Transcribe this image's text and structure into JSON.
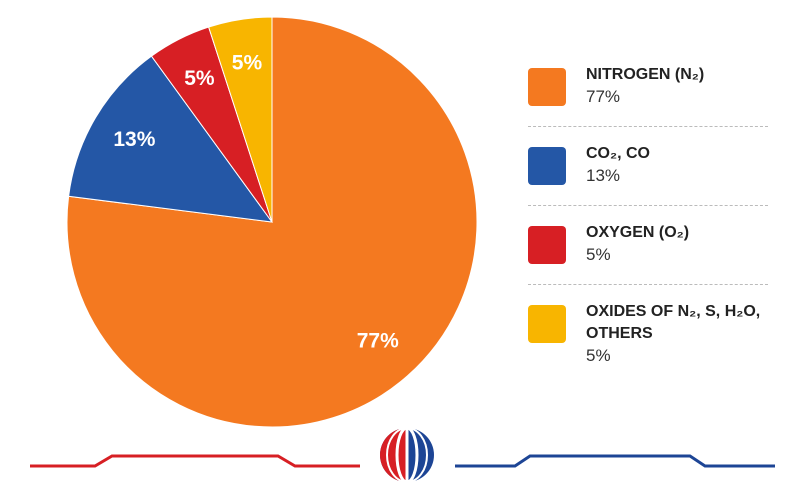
{
  "chart_data": {
    "type": "pie",
    "categories": [
      "NITROGEN (N₂)",
      "CO₂, CO",
      "OXYGEN (O₂)",
      "OXIDES OF N₂, S, H₂O, OTHERS"
    ],
    "values": [
      77,
      13,
      5,
      5
    ],
    "value_labels": [
      "77%",
      "13%",
      "5%",
      "5%"
    ],
    "colors": [
      "#f47920",
      "#2457a6",
      "#d71f24",
      "#f8b500"
    ],
    "legend": "right"
  }
}
